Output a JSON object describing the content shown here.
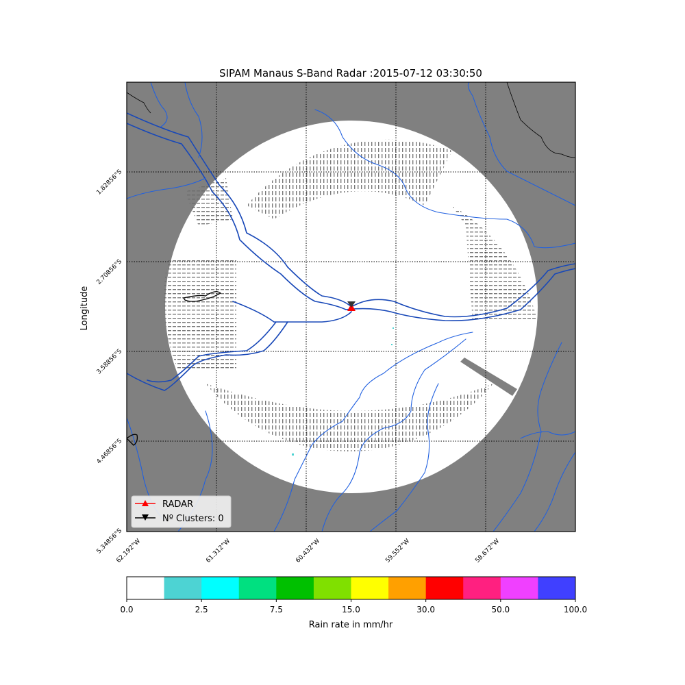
{
  "title": "SIPAM Manaus S-Band Radar :2015-07-12 03:30:50",
  "ylabel": "Longitude",
  "lat_labels": [
    "1.82856°S",
    "2.70856°S",
    "3.58856°S",
    "4.46856°S",
    "5.34856°S"
  ],
  "lon_labels": [
    "62.192°W",
    "61.312°W",
    "60.432°W",
    "59.552°W",
    "58.672°W"
  ],
  "legend": {
    "radar_label": "RADAR",
    "clusters_label": "Nº Clusters: 0"
  },
  "colorbar": {
    "label": "Rain rate in mm/hr",
    "colors": [
      "#ffffff",
      "#4dd3d3",
      "#00ffff",
      "#00e080",
      "#00c000",
      "#80e000",
      "#ffff00",
      "#ffa000",
      "#ff0000",
      "#ff2080",
      "#f040ff",
      "#4040ff"
    ],
    "tick_labels": [
      "0.0",
      "2.5",
      "7.5",
      "15.0",
      "30.0",
      "50.0",
      "100.0"
    ]
  },
  "colors": {
    "land": "#808080",
    "coverage": "#ffffff",
    "river": "#1848b8",
    "river_minor": "#2060e0",
    "radar": "#ff0000"
  }
}
